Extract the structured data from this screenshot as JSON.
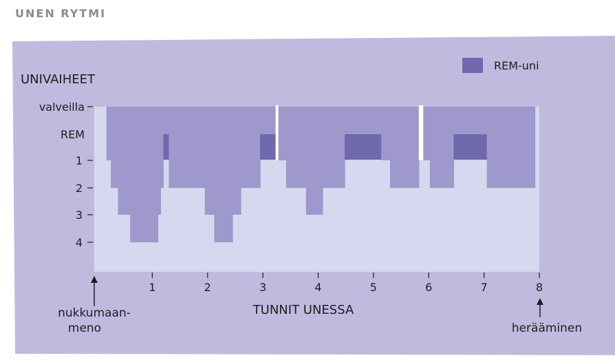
{
  "page_title": "UNEN RYTMI",
  "colors": {
    "panel_background": "#c0bade",
    "plot_background": "#d5d8ee",
    "sleep_fill": "#9e98cc",
    "rem_fill": "#6f68ad",
    "text": "#1e1e1e",
    "title": "#8a8a94"
  },
  "chart_data": {
    "type": "area",
    "title": "",
    "ylabel": "UNIVAIHEET",
    "xlabel": "TUNNIT UNESSA",
    "xlim": [
      0,
      8
    ],
    "x_ticks": [
      "1",
      "2",
      "3",
      "4",
      "5",
      "6",
      "7",
      "8"
    ],
    "y_levels": [
      "valveilla",
      "REM",
      "1",
      "2",
      "3",
      "4"
    ],
    "legend": {
      "label": "REM-uni",
      "placement": "top-right"
    },
    "annotations": {
      "start": "nukkumaan-\nmeno",
      "end": "herääminen"
    },
    "note": "Stage values: 0 = valveilla, 1 = 1, 2 = 2, 3 = 3, 4 = 4; REM segments at stage REM level are listed separately.",
    "hypnogram": [
      {
        "start": 0.0,
        "end": 0.17,
        "stage": "valveilla"
      },
      {
        "start": 0.17,
        "end": 0.25,
        "stage": "1"
      },
      {
        "start": 0.25,
        "end": 0.38,
        "stage": "2"
      },
      {
        "start": 0.38,
        "end": 0.6,
        "stage": "3"
      },
      {
        "start": 0.6,
        "end": 1.1,
        "stage": "4"
      },
      {
        "start": 1.1,
        "end": 1.15,
        "stage": "3"
      },
      {
        "start": 1.15,
        "end": 1.2,
        "stage": "2"
      },
      {
        "start": 1.2,
        "end": 1.3,
        "stage": "REM"
      },
      {
        "start": 1.3,
        "end": 1.95,
        "stage": "2"
      },
      {
        "start": 1.95,
        "end": 2.12,
        "stage": "3"
      },
      {
        "start": 2.12,
        "end": 2.45,
        "stage": "4"
      },
      {
        "start": 2.45,
        "end": 2.6,
        "stage": "3"
      },
      {
        "start": 2.6,
        "end": 2.95,
        "stage": "2"
      },
      {
        "start": 2.95,
        "end": 3.23,
        "stage": "REM"
      },
      {
        "start": 3.23,
        "end": 3.28,
        "stage": "valveilla"
      },
      {
        "start": 3.28,
        "end": 3.42,
        "stage": "1"
      },
      {
        "start": 3.42,
        "end": 3.78,
        "stage": "2"
      },
      {
        "start": 3.78,
        "end": 4.08,
        "stage": "3"
      },
      {
        "start": 4.08,
        "end": 4.48,
        "stage": "2"
      },
      {
        "start": 4.48,
        "end": 5.14,
        "stage": "REM"
      },
      {
        "start": 5.14,
        "end": 5.3,
        "stage": "1"
      },
      {
        "start": 5.3,
        "end": 5.82,
        "stage": "2"
      },
      {
        "start": 5.82,
        "end": 5.9,
        "stage": "valveilla"
      },
      {
        "start": 5.9,
        "end": 6.02,
        "stage": "1"
      },
      {
        "start": 6.02,
        "end": 6.45,
        "stage": "2"
      },
      {
        "start": 6.45,
        "end": 7.05,
        "stage": "REM"
      },
      {
        "start": 7.05,
        "end": 7.92,
        "stage": "2"
      },
      {
        "start": 7.92,
        "end": 8.0,
        "stage": "valveilla"
      }
    ],
    "rem_segments": [
      {
        "start": 1.2,
        "end": 1.3
      },
      {
        "start": 2.95,
        "end": 3.23
      },
      {
        "start": 4.48,
        "end": 5.14
      },
      {
        "start": 6.45,
        "end": 7.05
      }
    ],
    "wake_gaps": [
      {
        "start": 3.23,
        "end": 3.28
      },
      {
        "start": 5.82,
        "end": 5.9
      }
    ]
  }
}
